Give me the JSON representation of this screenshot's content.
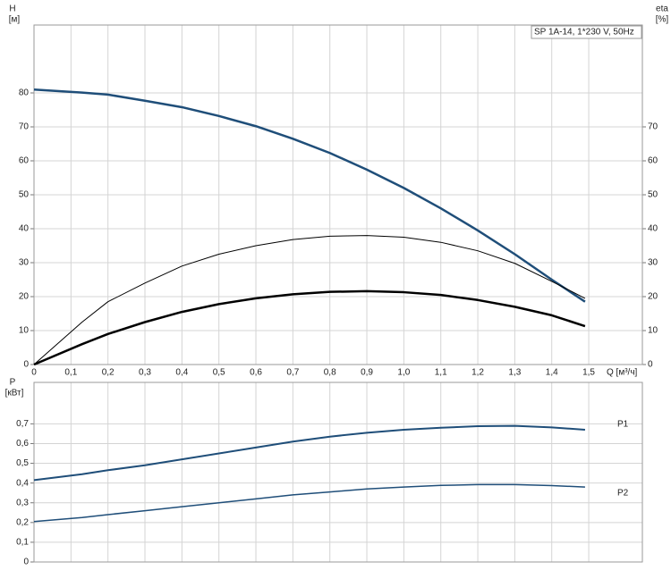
{
  "chart_data": [
    {
      "type": "line",
      "title": "SP 1A-14, 1*230 V, 50Hz",
      "ylabel": "H",
      "yunit": "[м]",
      "y2label": "eta",
      "y2unit": "[%]",
      "xlabel": "Q [м³/ч]",
      "grid": true,
      "x": [
        0,
        0.13,
        0.2,
        0.3,
        0.4,
        0.5,
        0.6,
        0.7,
        0.8,
        0.9,
        1.0,
        1.1,
        1.2,
        1.3,
        1.4,
        1.49
      ],
      "xlim": [
        0,
        1.645
      ],
      "xticks": [
        0,
        {
          "value": 0.1,
          "label": "0,1"
        },
        {
          "value": 0.2,
          "label": "0,2"
        },
        {
          "value": 0.3,
          "label": "0,3"
        },
        {
          "value": 0.4,
          "label": "0,4"
        },
        {
          "value": 0.5,
          "label": "0,5"
        },
        {
          "value": 0.6,
          "label": "0,6"
        },
        {
          "value": 0.7,
          "label": "0,7"
        },
        {
          "value": 0.8,
          "label": "0,8"
        },
        {
          "value": 0.9,
          "label": "0,9"
        },
        {
          "value": 1.0,
          "label": "1,0"
        },
        {
          "value": 1.1,
          "label": "1,1"
        },
        {
          "value": 1.2,
          "label": "1,2"
        },
        {
          "value": 1.3,
          "label": "1,3"
        },
        {
          "value": 1.4,
          "label": "1,4"
        },
        {
          "value": 1.5,
          "label": "1,5"
        }
      ],
      "ylim": [
        0,
        100
      ],
      "yticks": [
        0,
        10,
        20,
        30,
        40,
        50,
        60,
        70,
        80
      ],
      "y2lim": [
        0,
        100
      ],
      "y2ticks": [
        0,
        10,
        20,
        30,
        40,
        50,
        60,
        70
      ],
      "series": [
        {
          "color": "#1f4e79",
          "width": 2.5,
          "values": [
            81,
            80.1,
            79.5,
            77.7,
            75.8,
            73.2,
            70.2,
            66.5,
            62.3,
            57.4,
            52,
            46,
            39.5,
            32.5,
            25,
            18.5
          ]
        },
        {
          "color": "#000000",
          "width": 1,
          "axis": "y2",
          "values": [
            0,
            12.5,
            18.5,
            24,
            29,
            32.5,
            35,
            36.8,
            37.8,
            38,
            37.5,
            36,
            33.5,
            29.8,
            24.5,
            19.5
          ]
        },
        {
          "color": "#000000",
          "width": 2.5,
          "axis": "y2",
          "values": [
            0,
            6,
            9,
            12.5,
            15.5,
            17.8,
            19.5,
            20.7,
            21.4,
            21.6,
            21.3,
            20.5,
            19,
            17,
            14.5,
            11.3
          ]
        }
      ]
    },
    {
      "type": "line",
      "ylabel": "P",
      "yunit": "[кВт]",
      "grid": true,
      "x": [
        0,
        0.13,
        0.2,
        0.3,
        0.4,
        0.5,
        0.6,
        0.7,
        0.8,
        0.9,
        1.0,
        1.1,
        1.2,
        1.3,
        1.4,
        1.49
      ],
      "xlim": [
        0,
        1.645
      ],
      "xticks": [
        0,
        0.1,
        0.2,
        0.3,
        0.4,
        0.5,
        0.6,
        0.7,
        0.8,
        0.9,
        1.0,
        1.1,
        1.2,
        1.3,
        1.4,
        1.5
      ],
      "ylim": [
        0,
        0.91
      ],
      "yticks": [
        0,
        {
          "value": 0.1,
          "label": "0,1"
        },
        {
          "value": 0.2,
          "label": "0,2"
        },
        {
          "value": 0.3,
          "label": "0,3"
        },
        {
          "value": 0.4,
          "label": "0,4"
        },
        {
          "value": 0.5,
          "label": "0,5"
        },
        {
          "value": 0.6,
          "label": "0,6"
        },
        {
          "value": 0.7,
          "label": "0,7"
        }
      ],
      "series": [
        {
          "name": "P1",
          "color": "#1f4e79",
          "width": 2,
          "values": [
            0.415,
            0.445,
            0.465,
            0.49,
            0.52,
            0.55,
            0.58,
            0.61,
            0.635,
            0.655,
            0.67,
            0.68,
            0.688,
            0.69,
            0.682,
            0.67
          ]
        },
        {
          "name": "P2",
          "color": "#1f4e79",
          "width": 1.5,
          "values": [
            0.205,
            0.225,
            0.24,
            0.26,
            0.28,
            0.3,
            0.32,
            0.34,
            0.355,
            0.37,
            0.38,
            0.388,
            0.392,
            0.392,
            0.387,
            0.38
          ]
        }
      ]
    }
  ]
}
